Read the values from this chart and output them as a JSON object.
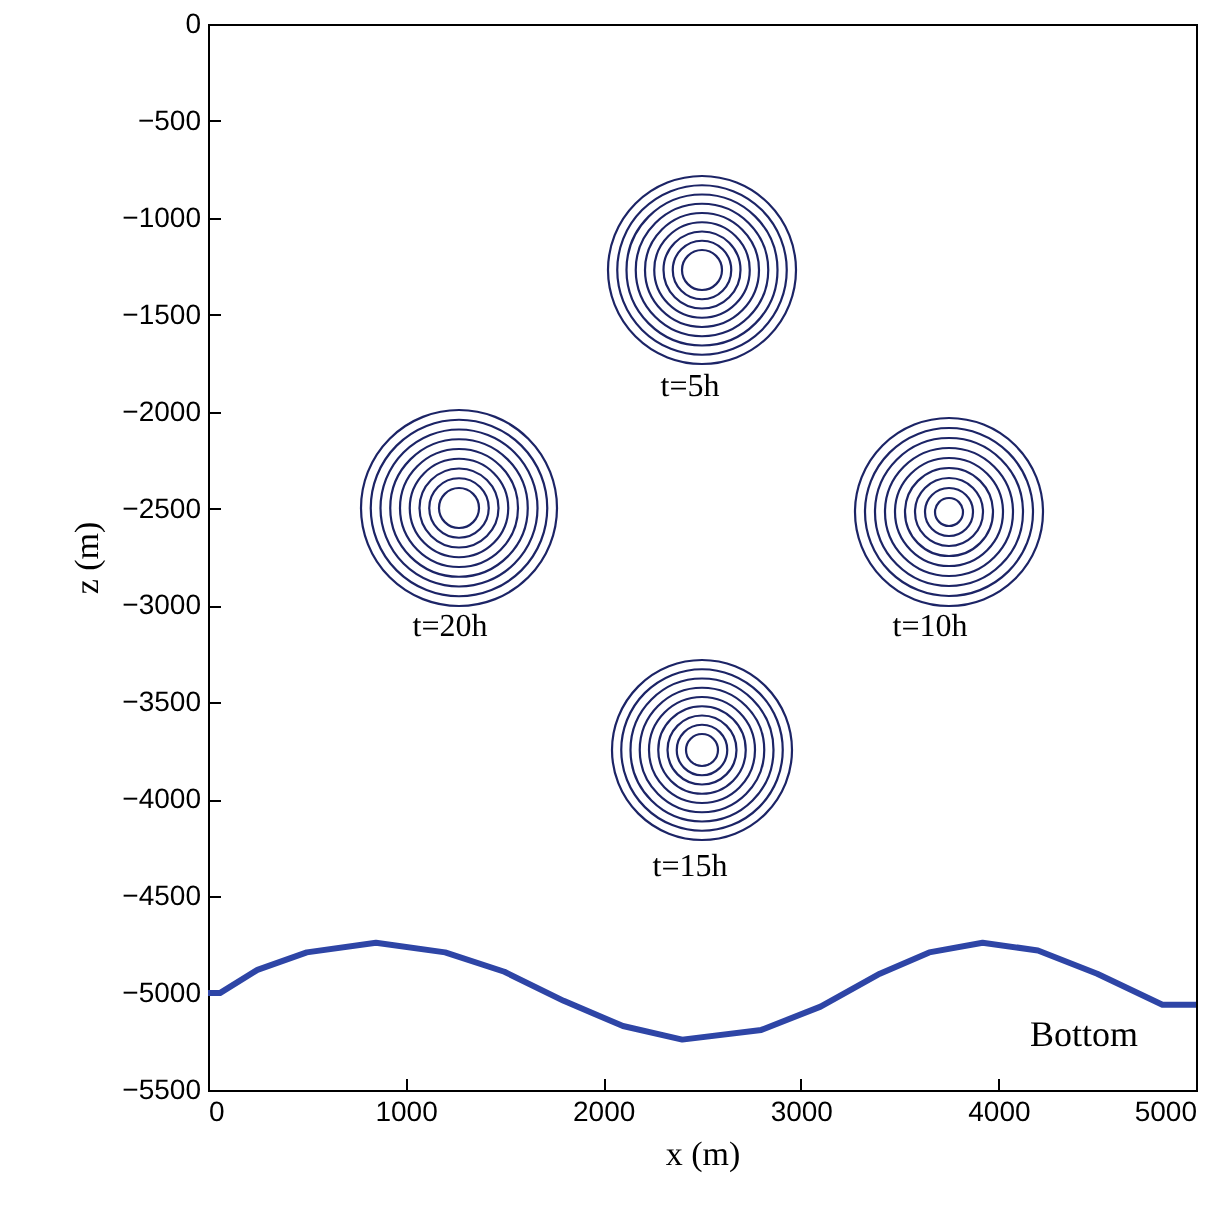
{
  "chart_data": {
    "type": "line",
    "xlabel": "x (m)",
    "ylabel": "z (m)",
    "xlim": [
      0,
      5000
    ],
    "xticks": [
      0,
      1000,
      2000,
      3000,
      4000,
      5000
    ],
    "ylim": [
      -5500,
      0
    ],
    "yticks": [
      -5500,
      -5000,
      -4500,
      -4000,
      -3500,
      -3000,
      -2500,
      -2000,
      -1500,
      -1000,
      -500,
      0
    ],
    "grid": false,
    "annotations": [
      "t=5h",
      "t=10h",
      "t=15h",
      "t=20h",
      "Bottom"
    ],
    "series": [
      {
        "color": "#2e45a6",
        "x": [
          0,
          60,
          250,
          500,
          850,
          1200,
          1500,
          1800,
          2100,
          2400,
          2800,
          3100,
          3400,
          3650,
          3920,
          4200,
          4500,
          4830,
          5000
        ],
        "values": [
          -5000,
          -5000,
          -4880,
          -4790,
          -4740,
          -4790,
          -4890,
          -5040,
          -5170,
          -5240,
          -5190,
          -5070,
          -4900,
          -4790,
          -4740,
          -4780,
          -4900,
          -5060,
          -5060
        ]
      }
    ]
  }
}
